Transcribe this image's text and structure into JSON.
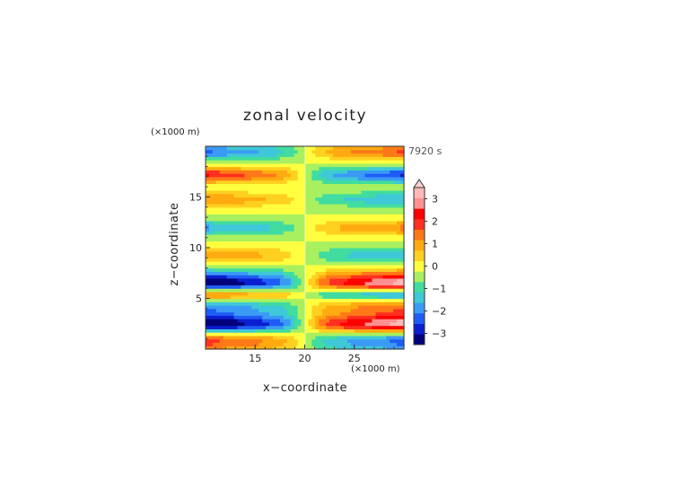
{
  "chart_data": {
    "type": "heatmap",
    "title": "zonal velocity",
    "xlabel": "x−coordinate",
    "ylabel": "z−coordinate",
    "x_unit": "(×1000 m)",
    "y_unit": "(×1000 m)",
    "time_label": "7920 s",
    "xlim": [
      10,
      30
    ],
    "ylim": [
      0,
      20
    ],
    "x_ticks": [
      15,
      20,
      25
    ],
    "y_ticks": [
      5,
      10,
      15
    ],
    "colorbar": {
      "ticks": [
        3,
        2,
        1,
        0,
        -1,
        -2,
        -3
      ],
      "levels": [
        -3.5,
        -3,
        -2.5,
        -2,
        -1.5,
        -1,
        -0.5,
        0,
        0.5,
        1,
        1.5,
        2,
        2.5,
        3,
        3.5
      ],
      "colors": [
        "#00007a",
        "#0a1fd0",
        "#1f5cf5",
        "#3a9af5",
        "#3ec8d8",
        "#40dca0",
        "#a8f060",
        "#ffff40",
        "#ffd020",
        "#ffaa10",
        "#ff7818",
        "#ff3020",
        "#ff0000",
        "#ff9090",
        "#ffb8b8"
      ],
      "extend": "max"
    },
    "bands": [
      {
        "z": 19.5,
        "amp": 1.8
      },
      {
        "z": 17.2,
        "amp": -2.2
      },
      {
        "z": 14.8,
        "amp": -1.3
      },
      {
        "z": 12.0,
        "amp": 1.4
      },
      {
        "z": 9.3,
        "amp": -1.3
      },
      {
        "z": 7.3,
        "amp": 1.4
      },
      {
        "z": 6.4,
        "amp": 3.2
      },
      {
        "z": 5.5,
        "amp": -2.0
      },
      {
        "z": 4.3,
        "amp": 1.6
      },
      {
        "z": 3.2,
        "amp": 1.4
      },
      {
        "z": 2.4,
        "amp": 2.8
      },
      {
        "z": 1.0,
        "amp": -1.5
      },
      {
        "z": 0.2,
        "amp": -1.0
      }
    ]
  }
}
